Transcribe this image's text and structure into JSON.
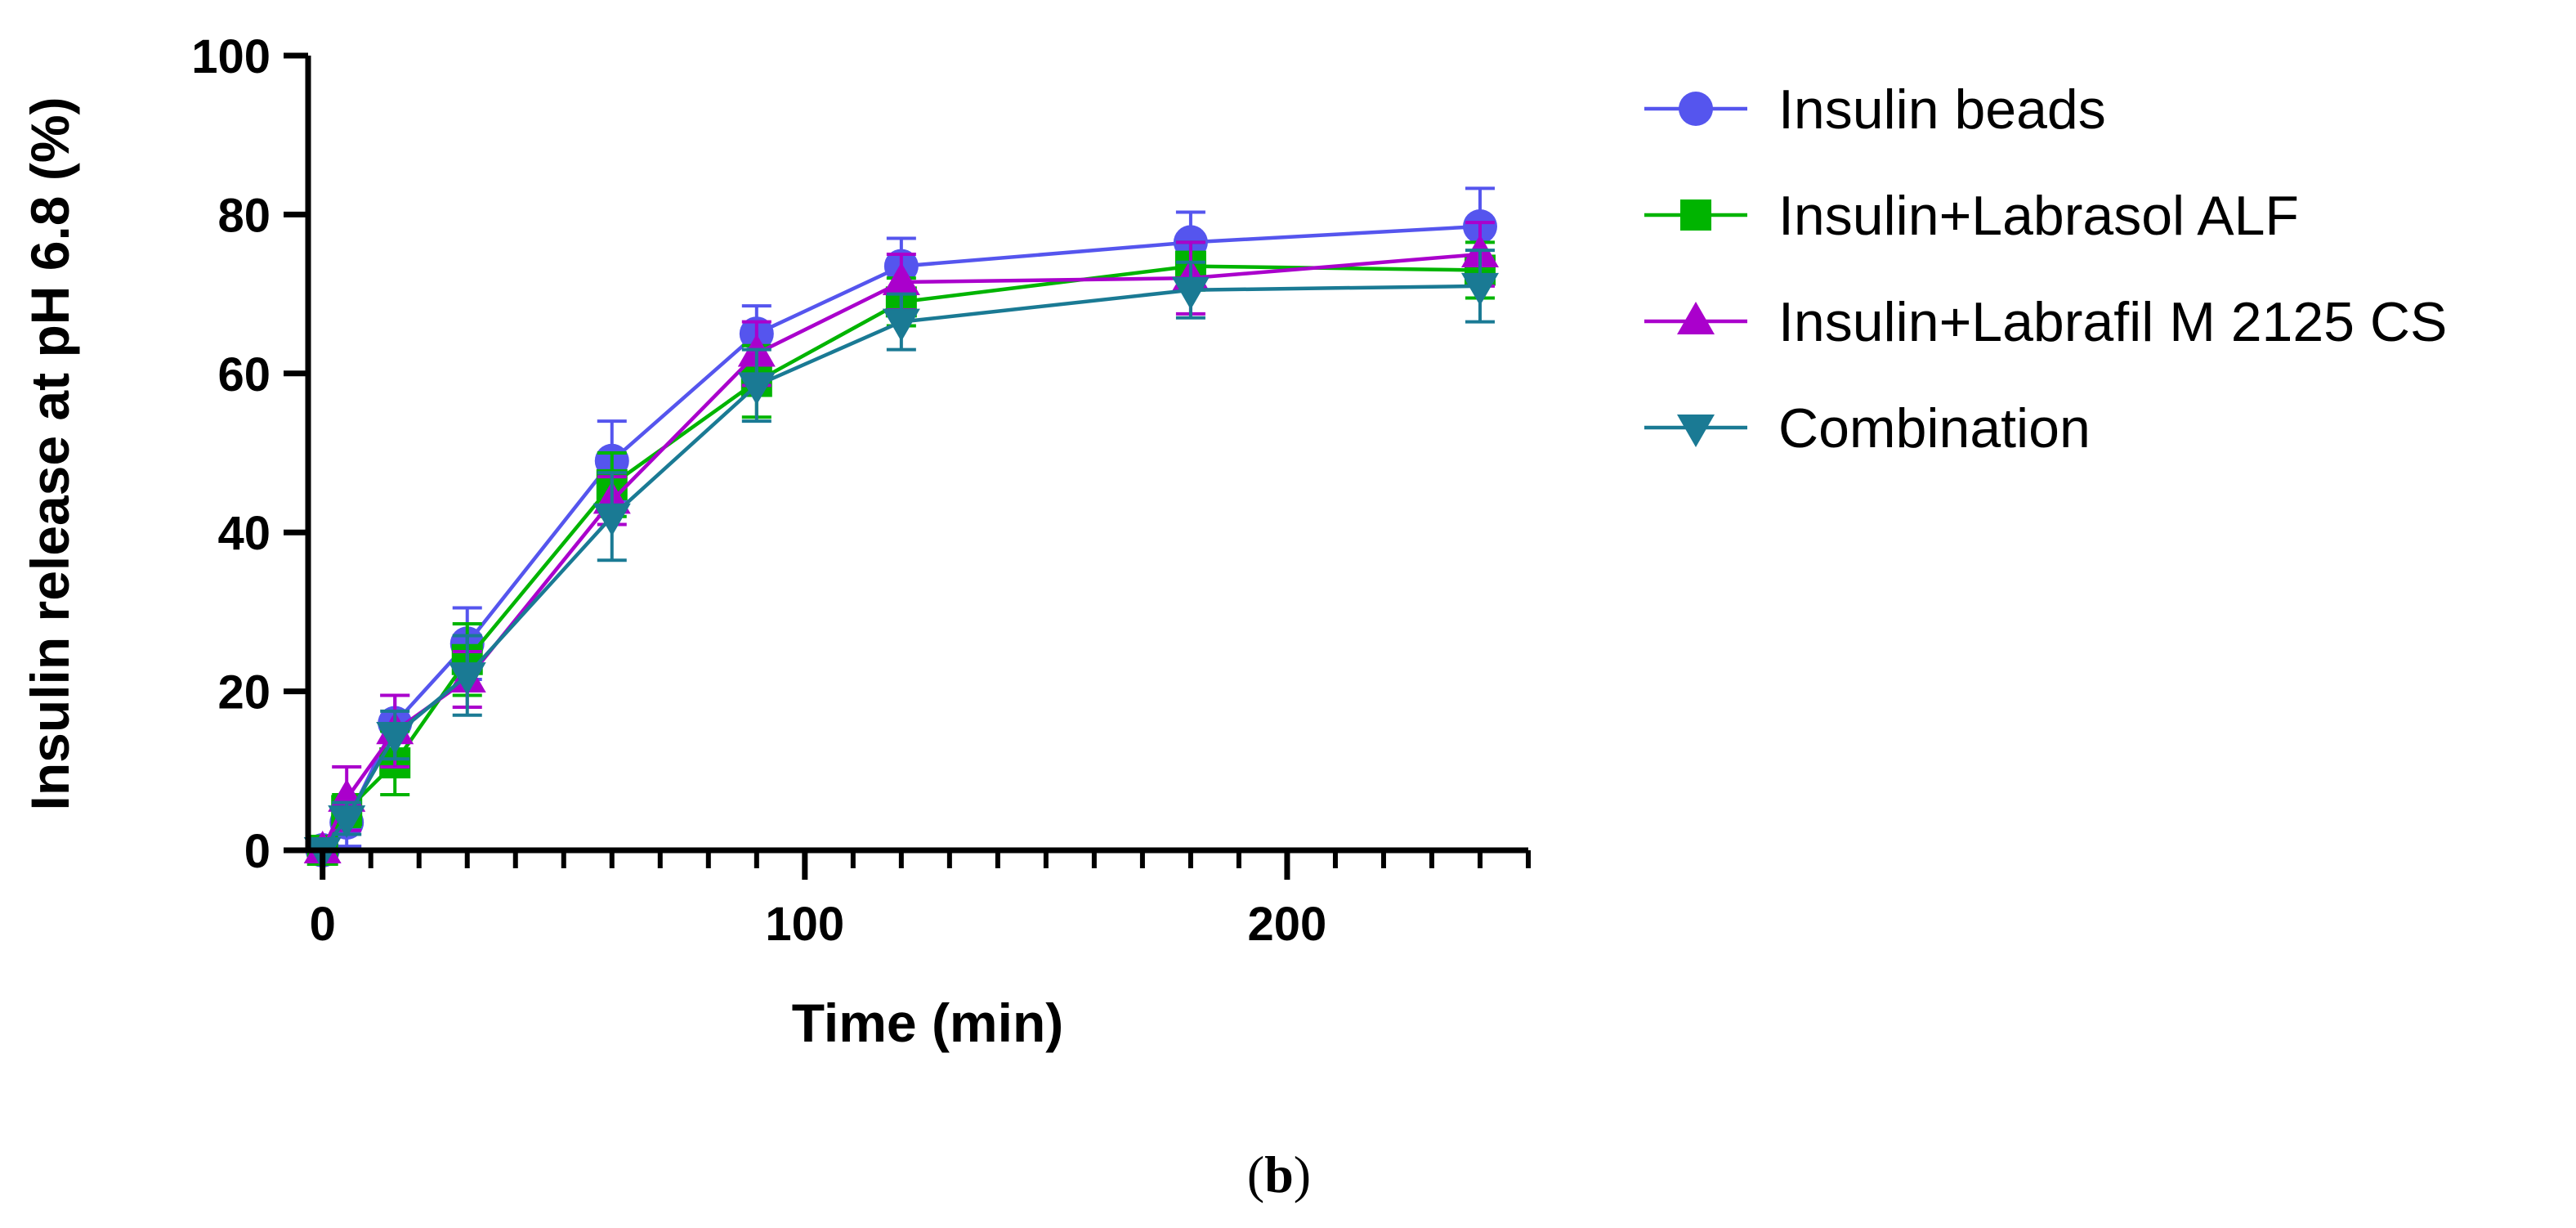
{
  "chart_data": {
    "type": "line",
    "title": "",
    "xlabel": "Time (min)",
    "ylabel": "Insulin release at pH 6.8 (%)",
    "xlim": [
      -3,
      250
    ],
    "ylim": [
      0,
      100
    ],
    "x_ticks": [
      0,
      100,
      200
    ],
    "x_tick_labels": [
      "0",
      "100",
      "200"
    ],
    "x_minor_ticks": [
      10,
      20,
      30,
      40,
      50,
      60,
      70,
      80,
      90,
      110,
      120,
      130,
      140,
      150,
      160,
      170,
      180,
      190,
      210,
      220,
      230,
      240,
      250
    ],
    "y_ticks": [
      0,
      20,
      40,
      60,
      80,
      100
    ],
    "y_tick_labels": [
      "0",
      "20",
      "40",
      "60",
      "80",
      "100"
    ],
    "grid": false,
    "legend_position": "top-right outside",
    "panel_label": {
      "open": "(",
      "letter": "b",
      "close": ")"
    },
    "x": [
      0,
      5,
      15,
      30,
      60,
      90,
      120,
      180,
      240
    ],
    "series": [
      {
        "name": "Insulin beads",
        "color": "#5555ee",
        "marker": "circle",
        "values": [
          0,
          3.5,
          16,
          26,
          49,
          65,
          73.5,
          76.5,
          78.5
        ],
        "errors": [
          0,
          3,
          3.5,
          4.5,
          5,
          3.5,
          3.5,
          3.8,
          4.8
        ]
      },
      {
        "name": "Insulin+Labrasol ALF",
        "color": "#00b400",
        "marker": "square",
        "values": [
          0,
          5,
          11,
          24,
          46,
          59,
          69,
          73.5,
          73
        ],
        "errors": [
          0,
          2,
          4,
          4.5,
          4,
          4.5,
          3,
          3,
          3.5
        ]
      },
      {
        "name": "Insulin+Labrafil M 2125 CS",
        "color": "#aa00cc",
        "marker": "triangle-up",
        "values": [
          0,
          6.5,
          15,
          21.5,
          44,
          62.5,
          71.5,
          72,
          75
        ],
        "errors": [
          0,
          4,
          4.5,
          3.5,
          3,
          4,
          3.5,
          4.5,
          4
        ]
      },
      {
        "name": "Combination",
        "color": "#1a7a94",
        "marker": "triangle-down",
        "values": [
          0,
          4,
          14.5,
          22,
          42,
          58.5,
          66.5,
          70.5,
          71
        ],
        "errors": [
          0,
          2,
          3,
          5,
          5.5,
          4.5,
          3.5,
          3.5,
          4.5
        ]
      }
    ]
  }
}
